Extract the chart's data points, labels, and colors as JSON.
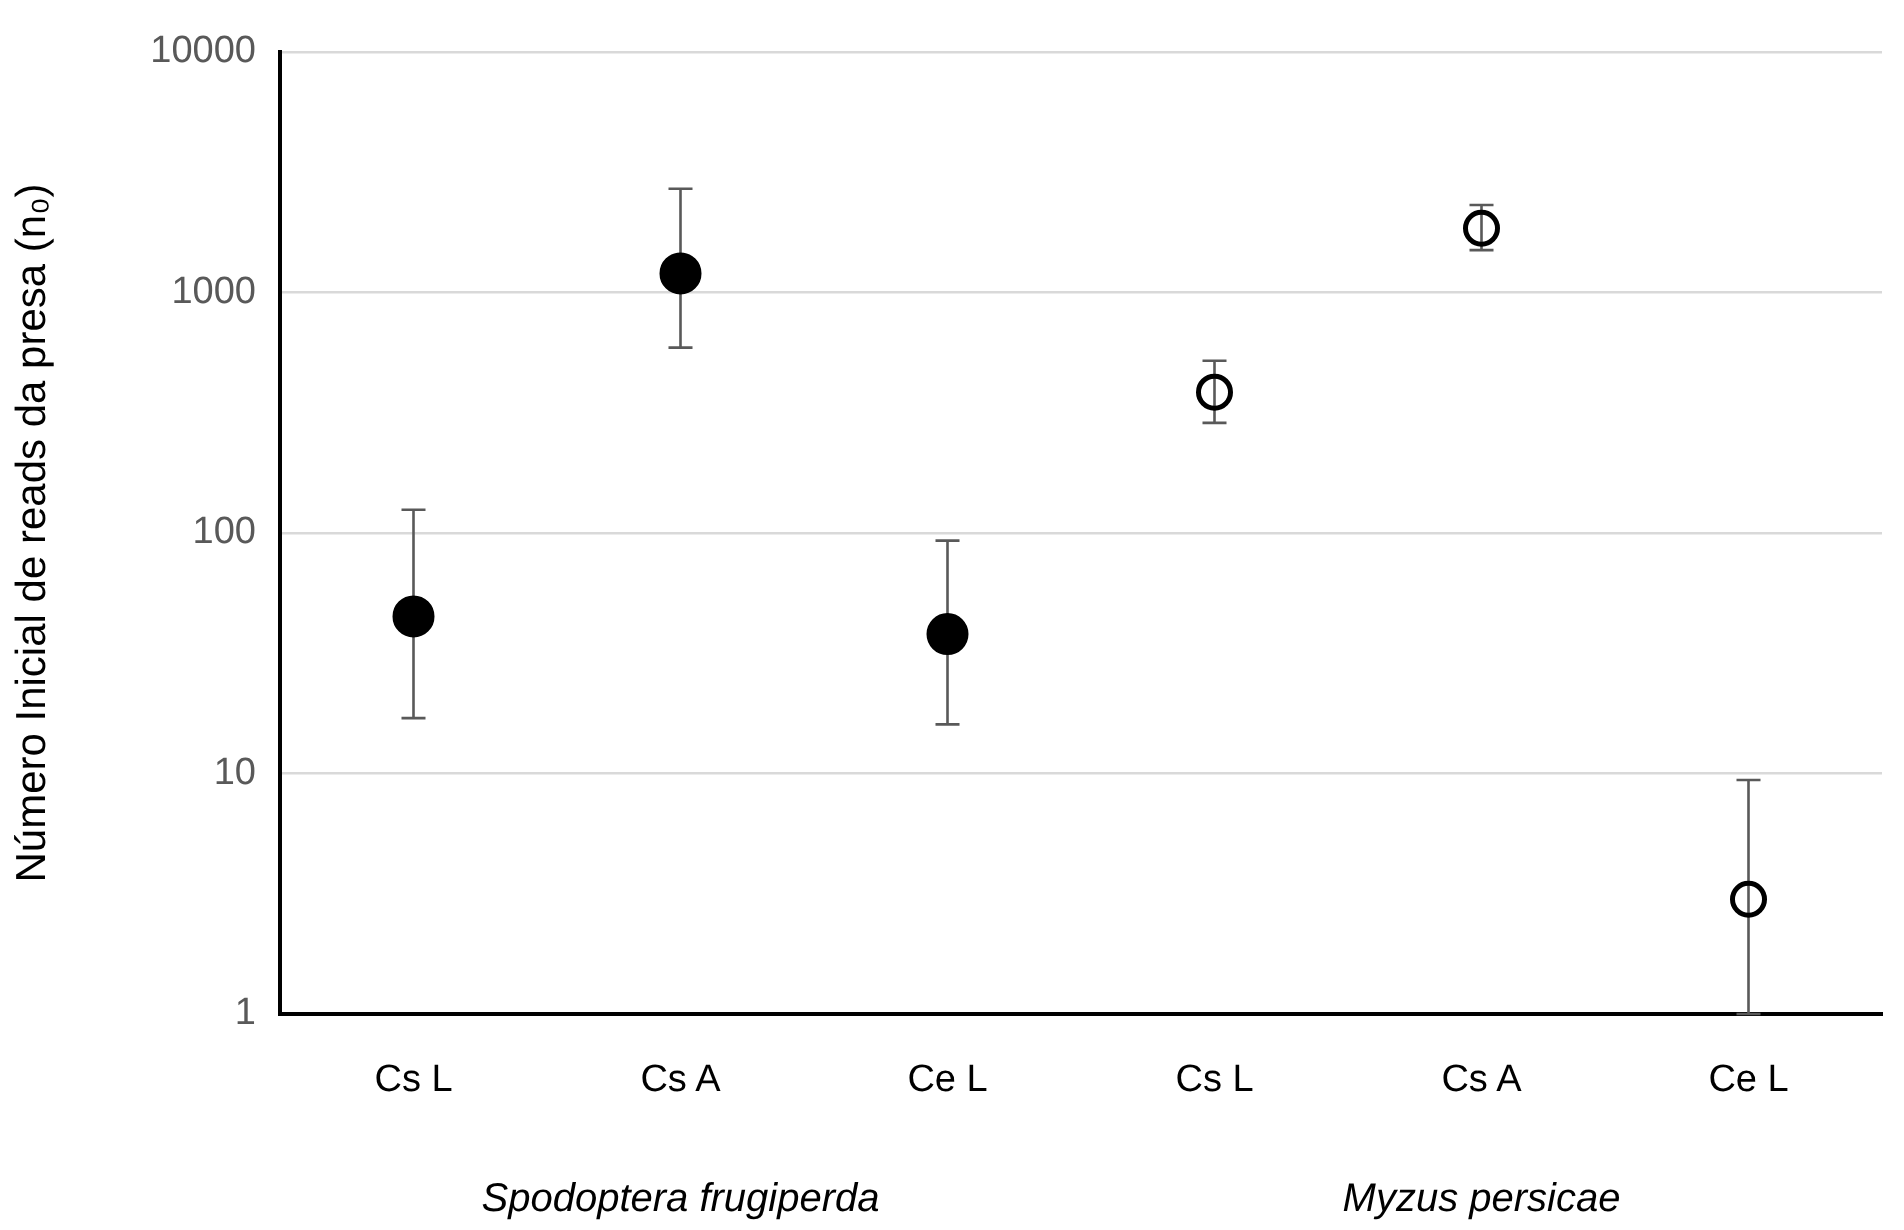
{
  "chart_data": {
    "type": "scatter",
    "ylabel": "Número Inicial de reads da presa (n₀)",
    "categories": [
      "Cs L",
      "Cs A",
      "Ce L",
      "Cs L",
      "Cs A",
      "Ce L"
    ],
    "series": [
      {
        "color": "#000000",
        "values": [
          45,
          1200,
          38,
          null,
          null,
          null
        ],
        "errors": [
          [
            17,
            125
          ],
          [
            590,
            2700
          ],
          [
            16,
            93
          ],
          null,
          null,
          null
        ]
      },
      {
        "color": "#000000",
        "values": [
          null,
          null,
          null,
          385,
          1850,
          3
        ],
        "errors": [
          null,
          null,
          null,
          [
            287,
            520
          ],
          [
            1500,
            2310
          ],
          [
            1,
            9.4
          ]
        ]
      }
    ],
    "annotations": [
      "Spodoptera frugiperda",
      "Myzus persicae"
    ],
    "log": "y",
    "ylim": [
      1,
      10000
    ],
    "yticks": [
      1,
      10,
      100,
      1000,
      10000
    ],
    "grid": "y",
    "marker": "circle",
    "legend": false
  }
}
